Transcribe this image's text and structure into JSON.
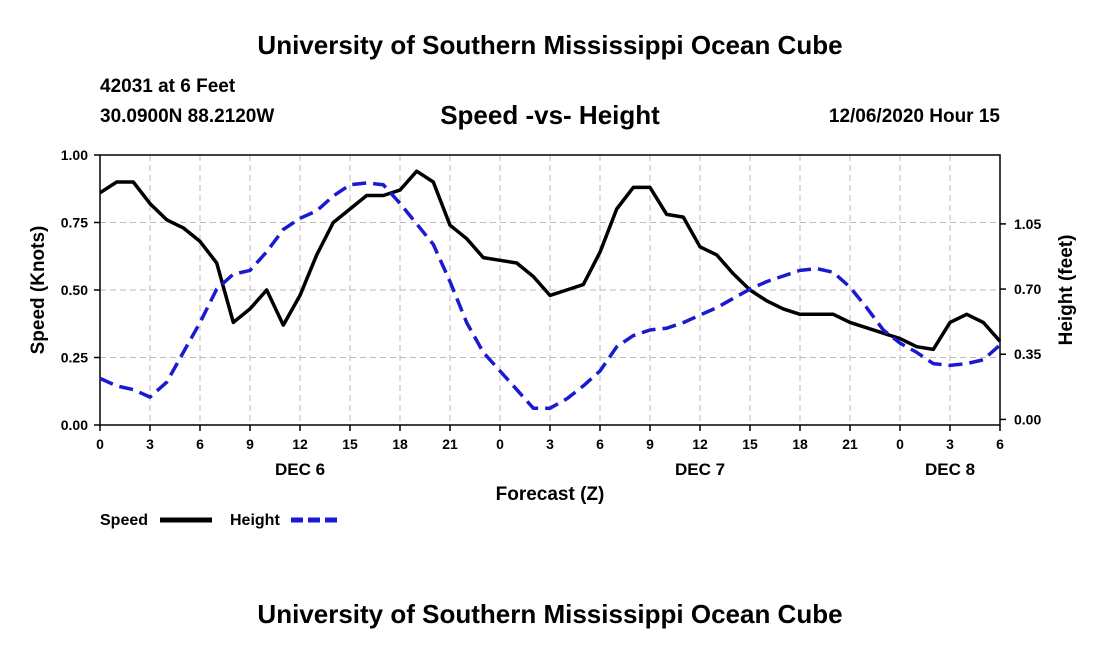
{
  "header": {
    "title": "University of Southern Mississippi Ocean Cube",
    "station_id": "42031 at 6 Feet",
    "coordinates": "30.0900N 88.2120W",
    "chart_title": "Speed -vs- Height",
    "timestamp": "12/06/2020 Hour 15"
  },
  "footer": {
    "title": "University of Southern Mississippi Ocean Cube"
  },
  "colors": {
    "speed": "#000000",
    "height": "#1a1ad0",
    "grid": "#bbbbbb"
  },
  "chart_data": {
    "type": "line",
    "title": "Speed -vs- Height",
    "xlabel": "Forecast (Z)",
    "ylabel_left": "Speed (Knots)",
    "ylabel_right": "Height (feet)",
    "xlim": [
      0,
      54
    ],
    "ylim_left": [
      0,
      1
    ],
    "ylim_right": [
      -0.03,
      1.42
    ],
    "grid": true,
    "x_ticks": [
      0,
      3,
      6,
      9,
      12,
      15,
      18,
      21,
      24,
      27,
      30,
      33,
      36,
      39,
      42,
      45,
      48,
      51,
      54
    ],
    "x_tick_labels": [
      "0",
      "3",
      "6",
      "9",
      "12",
      "15",
      "18",
      "21",
      "0",
      "3",
      "6",
      "9",
      "12",
      "15",
      "18",
      "21",
      "0",
      "3",
      "6"
    ],
    "left_ticks": [
      0,
      0.25,
      0.5,
      0.75,
      1.0
    ],
    "left_tick_labels": [
      "0.00",
      "0.25",
      "0.50",
      "0.75",
      "1.00"
    ],
    "right_ticks": [
      0,
      0.35,
      0.7,
      1.05
    ],
    "right_tick_labels": [
      "0.00",
      "0.35",
      "0.70",
      "1.05"
    ],
    "day_labels": [
      {
        "x": 12,
        "label": "DEC 6"
      },
      {
        "x": 36,
        "label": "DEC 7"
      },
      {
        "x": 51,
        "label": "DEC 8"
      }
    ],
    "series": [
      {
        "name": "Speed",
        "axis": "left",
        "style": "solid",
        "x": [
          0,
          1,
          2,
          3,
          4,
          5,
          6,
          7,
          8,
          9,
          10,
          11,
          12,
          13,
          14,
          15,
          16,
          17,
          18,
          19,
          20,
          21,
          22,
          23,
          24,
          25,
          26,
          27,
          28,
          29,
          30,
          31,
          32,
          33,
          34,
          35,
          36,
          37,
          38,
          39,
          40,
          41,
          42,
          43,
          44,
          45,
          46,
          47,
          48,
          49,
          50,
          51,
          52,
          53,
          54
        ],
        "values": [
          0.86,
          0.9,
          0.9,
          0.82,
          0.76,
          0.73,
          0.68,
          0.6,
          0.38,
          0.43,
          0.5,
          0.37,
          0.48,
          0.63,
          0.75,
          0.8,
          0.85,
          0.85,
          0.87,
          0.94,
          0.9,
          0.74,
          0.69,
          0.62,
          0.61,
          0.6,
          0.55,
          0.48,
          0.5,
          0.52,
          0.64,
          0.8,
          0.88,
          0.88,
          0.78,
          0.77,
          0.66,
          0.63,
          0.56,
          0.5,
          0.46,
          0.43,
          0.41,
          0.41,
          0.41,
          0.38,
          0.36,
          0.34,
          0.32,
          0.29,
          0.28,
          0.38,
          0.41,
          0.38,
          0.31
        ]
      },
      {
        "name": "Height",
        "axis": "right",
        "style": "dashed",
        "x": [
          0,
          1,
          2,
          3,
          4,
          5,
          6,
          7,
          8,
          9,
          10,
          11,
          12,
          13,
          14,
          15,
          16,
          17,
          18,
          19,
          20,
          21,
          22,
          23,
          24,
          25,
          26,
          27,
          28,
          29,
          30,
          31,
          32,
          33,
          34,
          35,
          36,
          37,
          38,
          39,
          40,
          41,
          42,
          43,
          44,
          45,
          46,
          47,
          48,
          49,
          50,
          51,
          52,
          53,
          54
        ],
        "values": [
          0.22,
          0.18,
          0.16,
          0.12,
          0.2,
          0.36,
          0.52,
          0.7,
          0.78,
          0.8,
          0.9,
          1.02,
          1.08,
          1.12,
          1.2,
          1.26,
          1.27,
          1.26,
          1.16,
          1.05,
          0.94,
          0.74,
          0.52,
          0.36,
          0.26,
          0.16,
          0.06,
          0.06,
          0.11,
          0.18,
          0.26,
          0.39,
          0.45,
          0.48,
          0.49,
          0.52,
          0.56,
          0.6,
          0.65,
          0.7,
          0.74,
          0.77,
          0.8,
          0.81,
          0.79,
          0.71,
          0.6,
          0.48,
          0.41,
          0.36,
          0.3,
          0.29,
          0.3,
          0.32,
          0.4
        ]
      }
    ],
    "legend": [
      {
        "label": "Speed",
        "style": "solid"
      },
      {
        "label": "Height",
        "style": "dashed"
      }
    ]
  }
}
